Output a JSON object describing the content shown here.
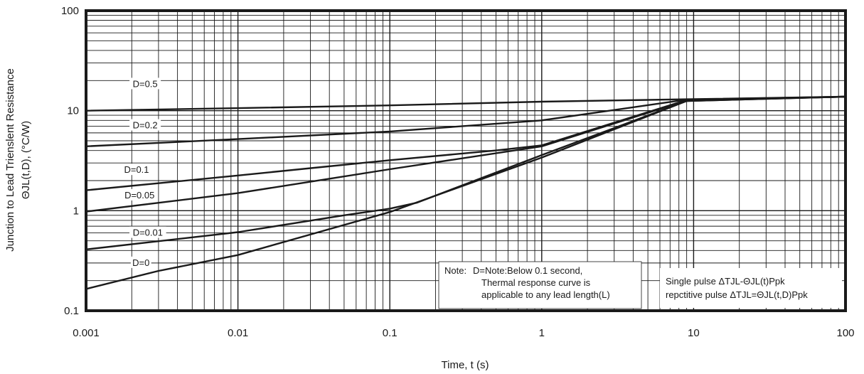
{
  "chart_data": {
    "type": "line",
    "xscale": "log",
    "yscale": "log",
    "xlim": [
      0.001,
      100
    ],
    "ylim": [
      0.1,
      100
    ],
    "grid": true,
    "xlabel": "Time, t (s)",
    "ylabel_line1": "Junction to Lead Trienslent Resistance",
    "ylabel_line2": "ΘJL(t,D), (°C/W)",
    "x_ticks": [
      {
        "value": 0.001,
        "label": "0.001"
      },
      {
        "value": 0.01,
        "label": "0.01"
      },
      {
        "value": 0.1,
        "label": "0.1"
      },
      {
        "value": 1,
        "label": "1"
      },
      {
        "value": 10,
        "label": "10"
      },
      {
        "value": 100,
        "label": "100"
      }
    ],
    "y_ticks": [
      {
        "value": 0.1,
        "label": "0.1"
      },
      {
        "value": 1,
        "label": "1"
      },
      {
        "value": 10,
        "label": "10"
      },
      {
        "value": 100,
        "label": "100"
      }
    ],
    "series": [
      {
        "name": "D=0.5",
        "points": [
          [
            0.001,
            10
          ],
          [
            0.01,
            10.6
          ],
          [
            0.1,
            11.3
          ],
          [
            1,
            12.3
          ],
          [
            9,
            13.0
          ],
          [
            100,
            13.8
          ]
        ]
      },
      {
        "name": "D=0.2",
        "points": [
          [
            0.001,
            4.4
          ],
          [
            0.01,
            5.2
          ],
          [
            0.1,
            6.2
          ],
          [
            1,
            8.0
          ],
          [
            9,
            12.9
          ],
          [
            100,
            13.8
          ]
        ]
      },
      {
        "name": "D=0.1",
        "points": [
          [
            0.001,
            1.6
          ],
          [
            0.01,
            2.25
          ],
          [
            0.1,
            3.2
          ],
          [
            0.5,
            4.0
          ],
          [
            1,
            4.5
          ],
          [
            9,
            12.8
          ],
          [
            100,
            13.8
          ]
        ]
      },
      {
        "name": "D=0.05",
        "points": [
          [
            0.001,
            0.98
          ],
          [
            0.01,
            1.5
          ],
          [
            0.1,
            2.6
          ],
          [
            1,
            4.4
          ],
          [
            9,
            12.6
          ],
          [
            100,
            13.8
          ]
        ]
      },
      {
        "name": "D=0.01",
        "points": [
          [
            0.001,
            0.41
          ],
          [
            0.01,
            0.61
          ],
          [
            0.05,
            0.9
          ],
          [
            0.1,
            1.05
          ],
          [
            0.15,
            1.2
          ],
          [
            1,
            3.6
          ],
          [
            9,
            12.5
          ],
          [
            100,
            13.8
          ]
        ]
      },
      {
        "name": "D=0",
        "points": [
          [
            0.001,
            0.165
          ],
          [
            0.003,
            0.25
          ],
          [
            0.01,
            0.36
          ],
          [
            0.1,
            0.97
          ],
          [
            1,
            3.4
          ],
          [
            9,
            12.5
          ],
          [
            100,
            13.8
          ]
        ]
      }
    ],
    "curve_labels": [
      {
        "text": "D=0.5",
        "x": 0.00245,
        "y": 18.4
      },
      {
        "text": "D=0.2",
        "x": 0.00245,
        "y": 7.1
      },
      {
        "text": "D=0.1",
        "x": 0.00215,
        "y": 2.55
      },
      {
        "text": "D=0.05",
        "x": 0.00225,
        "y": 1.42
      },
      {
        "text": "D=0.01",
        "x": 0.00255,
        "y": 0.6
      },
      {
        "text": "D=0",
        "x": 0.0023,
        "y": 0.3
      }
    ],
    "note": {
      "prefix": "Note:",
      "line1": "D=Note:Below 0.1 second,",
      "line2": "Thermal response curve is",
      "line3": "applicable to any lead length(L)"
    },
    "pulse_note": {
      "line1": "Single pulse ΔTJL-ΘJL(t)Ppk",
      "line2": "repctitive pulse ΔTJL=ΘJL(t,D)Ppk"
    }
  }
}
